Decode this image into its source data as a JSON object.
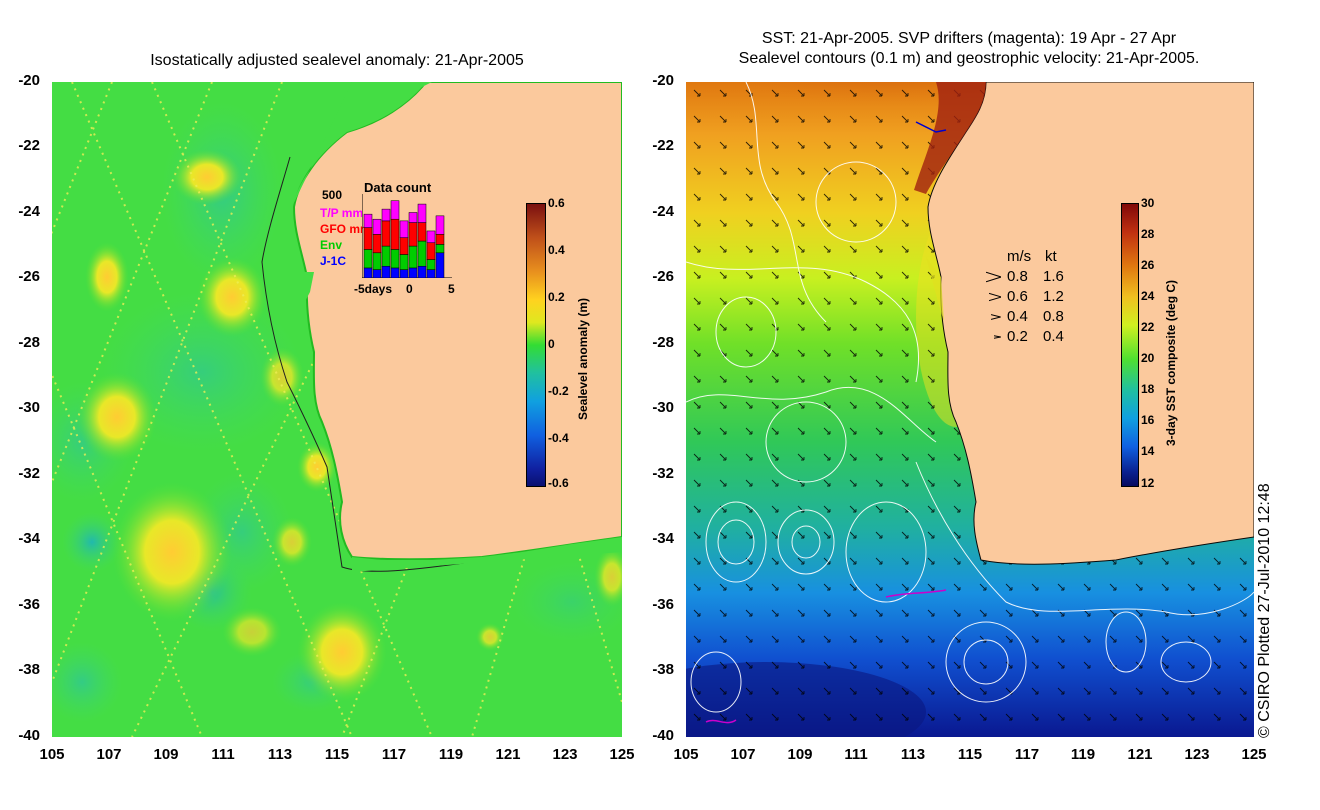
{
  "left_panel": {
    "title": "Isostatically adjusted sealevel anomaly: 21-Apr-2005",
    "y_ticks": [
      "-20",
      "-22",
      "-24",
      "-26",
      "-28",
      "-30",
      "-32",
      "-34",
      "-36",
      "-38",
      "-40"
    ],
    "x_ticks": [
      "105",
      "107",
      "109",
      "111",
      "113",
      "115",
      "117",
      "119",
      "121",
      "123",
      "125"
    ],
    "colorbar": {
      "label": "Sealevel anomaly (m)",
      "ticks": [
        "0.6",
        "0.4",
        "0.2",
        "0",
        "-0.2",
        "-0.4",
        "-0.6"
      ]
    },
    "data_count": {
      "title": "Data count",
      "ymax_label": "500",
      "legend": [
        {
          "name": "T/P mm",
          "color": "#ff00ff"
        },
        {
          "name": "GFO mm",
          "color": "#ff0000"
        },
        {
          "name": "Env",
          "color": "#00cc00"
        },
        {
          "name": "J-1C",
          "color": "#0000ff"
        }
      ],
      "x_labels": [
        "-5days",
        "0",
        "5"
      ],
      "bars": [
        {
          "jc": 0.12,
          "env": 0.22,
          "gfo": 0.26,
          "tp": 0.16
        },
        {
          "jc": 0.1,
          "env": 0.2,
          "gfo": 0.22,
          "tp": 0.18
        },
        {
          "jc": 0.14,
          "env": 0.24,
          "gfo": 0.3,
          "tp": 0.14
        },
        {
          "jc": 0.12,
          "env": 0.22,
          "gfo": 0.36,
          "tp": 0.22
        },
        {
          "jc": 0.1,
          "env": 0.18,
          "gfo": 0.2,
          "tp": 0.2
        },
        {
          "jc": 0.12,
          "env": 0.26,
          "gfo": 0.28,
          "tp": 0.12
        },
        {
          "jc": 0.14,
          "env": 0.3,
          "gfo": 0.22,
          "tp": 0.22
        },
        {
          "jc": 0.1,
          "env": 0.12,
          "gfo": 0.2,
          "tp": 0.14
        },
        {
          "jc": 0.3,
          "env": 0.1,
          "gfo": 0.12,
          "tp": 0.22
        }
      ]
    }
  },
  "right_panel": {
    "title_line1": "SST: 21-Apr-2005. SVP drifters (magenta): 19 Apr - 27 Apr",
    "title_line2": "Sealevel contours (0.1 m) and geostrophic velocity: 21-Apr-2005.",
    "y_ticks": [
      "-20",
      "-22",
      "-24",
      "-26",
      "-28",
      "-30",
      "-32",
      "-34",
      "-36",
      "-38",
      "-40"
    ],
    "x_ticks": [
      "105",
      "107",
      "109",
      "111",
      "113",
      "115",
      "117",
      "119",
      "121",
      "123",
      "125"
    ],
    "colorbar": {
      "label": "3-day SST composite (deg C)",
      "ticks": [
        "30",
        "28",
        "26",
        "24",
        "22",
        "20",
        "18",
        "16",
        "14",
        "12"
      ]
    },
    "velocity_legend": {
      "header_ms": "m/s",
      "header_kt": "kt",
      "rows": [
        {
          "ms": "0.8",
          "kt": "1.6",
          "mag": 0.8
        },
        {
          "ms": "0.6",
          "kt": "1.2",
          "mag": 0.6
        },
        {
          "ms": "0.4",
          "kt": "0.8",
          "mag": 0.4
        },
        {
          "ms": "0.2",
          "kt": "0.4",
          "mag": 0.2
        }
      ]
    }
  },
  "credit": "© CSIRO Plotted 27-Jul-2010 12:48",
  "colors": {
    "land": "#fbc99d",
    "ocean_green": "#33dd33"
  }
}
